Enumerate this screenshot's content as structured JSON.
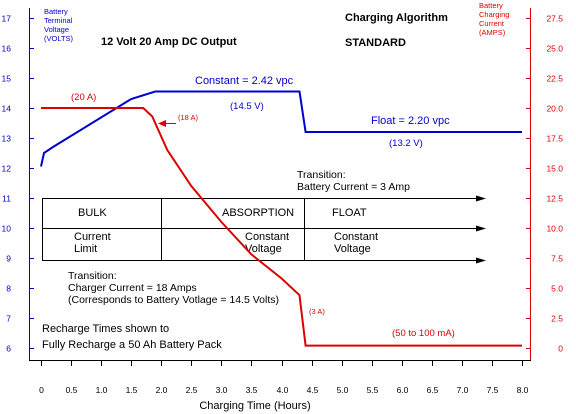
{
  "chart_data": {
    "type": "line",
    "title": "Charging Algorithm",
    "subtitle": "STANDARD",
    "header": "12 Volt 20 Amp DC Output",
    "xlabel": "Charging Time (Hours)",
    "ylabel_left": [
      "Battery",
      "Terminal",
      "Voltage",
      "(VOLTS)"
    ],
    "ylabel_right": [
      "Battery",
      "Charging",
      "Current",
      "(AMPS)"
    ],
    "xlim": [
      0,
      8
    ],
    "xticks": [
      "0",
      "0.5",
      "1.0",
      "1.5",
      "2.0",
      "2.5",
      "3.0",
      "3.5",
      "4.0",
      "4.5",
      "5.0",
      "5.5",
      "6.0",
      "6.5",
      "7.0",
      "7.5",
      "8.0"
    ],
    "ylim_left": [
      6,
      17
    ],
    "yticks_left": [
      "6",
      "7",
      "8",
      "9",
      "10",
      "11",
      "12",
      "13",
      "14",
      "15",
      "16",
      "17"
    ],
    "ylim_right": [
      0,
      27.5
    ],
    "yticks_right": [
      "0",
      "2.5",
      "5.0",
      "7.5",
      "10.0",
      "12.5",
      "15.0",
      "17.5",
      "20.0",
      "22.5",
      "25.0",
      "27.5"
    ],
    "grid": false,
    "series": [
      {
        "axis": "left",
        "color": "#0000cc",
        "points": [
          [
            0.0,
            12.05
          ],
          [
            0.05,
            12.5
          ],
          [
            0.2,
            12.7
          ],
          [
            1.5,
            14.3
          ],
          [
            1.9,
            14.55
          ],
          [
            3.43,
            14.55
          ],
          [
            4.3,
            14.55
          ],
          [
            4.4,
            13.2
          ],
          [
            8.0,
            13.2
          ]
        ]
      },
      {
        "axis": "right",
        "color": "#dd0000",
        "points": [
          [
            0.0,
            20.0
          ],
          [
            1.7,
            20.0
          ],
          [
            1.85,
            19.3
          ],
          [
            2.1,
            16.5
          ],
          [
            2.5,
            13.5
          ],
          [
            3.0,
            10.5
          ],
          [
            3.5,
            7.8
          ],
          [
            4.0,
            5.8
          ],
          [
            4.3,
            4.4
          ],
          [
            4.4,
            0.2
          ],
          [
            8.0,
            0.2
          ]
        ]
      }
    ],
    "annotations": {
      "constant": "Constant = 2.42 vpc",
      "v145": "(14.5 V)",
      "float": "Float = 2.20 vpc",
      "v132": "(13.2 V)",
      "a20": "(20 A)",
      "a18": "(18 A)",
      "a3": "(3 A)",
      "ma": "(50 to 100 mA)",
      "trans1": [
        "Transition:",
        "Battery Current = 3 Amp"
      ],
      "trans2": [
        "Transition:",
        "Charger Current = 18 Amps",
        "(Corresponds to Battery Votlage = 14.5 Volts)"
      ],
      "recharge": [
        "Recharge Times shown to",
        "Fully Recharge a 50 Ah Battery Pack"
      ]
    },
    "phases": [
      {
        "name": "BULK",
        "mode": [
          "Current",
          "Limit"
        ]
      },
      {
        "name": "ABSORPTION",
        "mode": [
          "Constant",
          "Voltage"
        ]
      },
      {
        "name": "FLOAT",
        "mode": [
          "Constant",
          "Voltage"
        ]
      }
    ],
    "colors": {
      "voltage": "#0000cc",
      "current": "#dd0000",
      "axis": "#000000"
    }
  }
}
